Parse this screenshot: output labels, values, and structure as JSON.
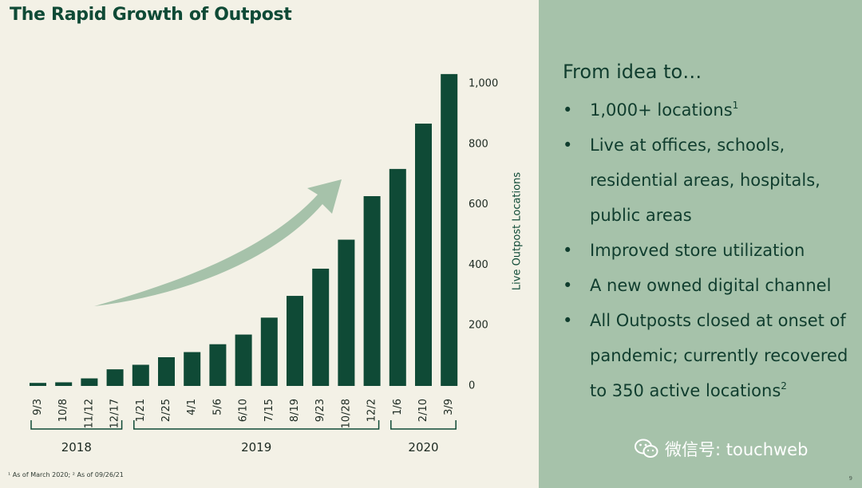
{
  "title": "The Rapid Growth of Outpost",
  "panel": {
    "heading": "From idea to…",
    "bullet_glyph": "•",
    "bullets": [
      {
        "text": "1,000+ locations",
        "sup": "1"
      },
      {
        "text": "Live at offices, schools, residential areas, hospitals, public areas",
        "sup": ""
      },
      {
        "text": "Improved store utilization",
        "sup": ""
      },
      {
        "text": "A new owned digital channel",
        "sup": ""
      },
      {
        "text": "All Outposts closed at onset of pandemic; currently recovered to 350 active locations",
        "sup": "2"
      }
    ]
  },
  "footnote": "¹ As of March 2020; ² As of 09/26/21",
  "page_number": "9",
  "watermark": {
    "text": "微信号: touchweb",
    "icon": "wechat-icon"
  },
  "colors": {
    "bar": "#0f4a36",
    "arrow": "#a6c2aa",
    "background": "#f3f1e6",
    "panel": "#a6c2aa",
    "text": "#103d2e"
  },
  "chart_data": {
    "type": "bar",
    "categories": [
      "9/3",
      "10/8",
      "11/12",
      "12/17",
      "1/21",
      "2/25",
      "4/1",
      "5/6",
      "6/10",
      "7/15",
      "8/19",
      "9/23",
      "10/28",
      "12/2",
      "1/6",
      "2/10",
      "3/9"
    ],
    "values": [
      10,
      12,
      25,
      55,
      70,
      95,
      112,
      138,
      170,
      226,
      298,
      388,
      484,
      628,
      718,
      868,
      1032
    ],
    "groups": [
      {
        "label": "2018",
        "start": 0,
        "end": 3
      },
      {
        "label": "2019",
        "start": 4,
        "end": 13
      },
      {
        "label": "2020",
        "start": 14,
        "end": 16
      }
    ],
    "ylabel": "Live Outpost Locations",
    "y_ticks": [
      "0",
      "200",
      "400",
      "600",
      "800",
      "1,000"
    ],
    "y_tick_values": [
      0,
      200,
      400,
      600,
      800,
      1000
    ],
    "ylim": [
      0,
      1050
    ],
    "y_axis_position": "right",
    "grid": false,
    "legend": "none",
    "annotation": "upward growth arrow"
  }
}
